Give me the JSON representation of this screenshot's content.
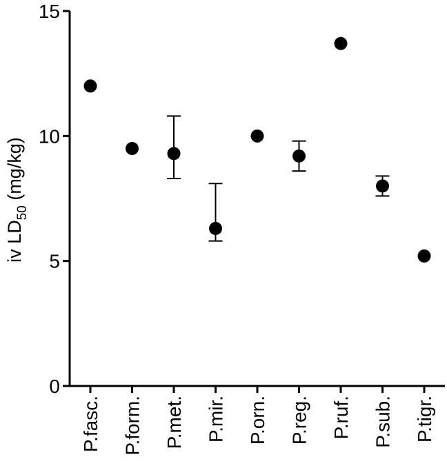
{
  "chart_data": {
    "type": "scatter",
    "ylabel": "iv LD50 (mg/kg)",
    "ylabel_parts": {
      "pre": "iv LD",
      "sub": "50",
      "post": " (mg/kg)"
    },
    "ylim": [
      0,
      15
    ],
    "yticks": [
      0,
      5,
      10,
      15
    ],
    "grid": false,
    "categories": [
      "P.fasc.",
      "P.form.",
      "P.met.",
      "P.mir.",
      "P.orn.",
      "P.reg.",
      "P.ruf.",
      "P.sub.",
      "P.tigr."
    ],
    "series": [
      {
        "values": [
          12.0,
          9.5,
          9.3,
          6.3,
          10.0,
          9.2,
          13.7,
          8.0,
          5.2
        ],
        "error_low": [
          null,
          null,
          8.3,
          5.8,
          null,
          8.6,
          null,
          7.6,
          null
        ],
        "error_high": [
          null,
          null,
          10.8,
          8.1,
          null,
          9.8,
          null,
          8.4,
          null
        ],
        "color": "#000000"
      }
    ]
  }
}
